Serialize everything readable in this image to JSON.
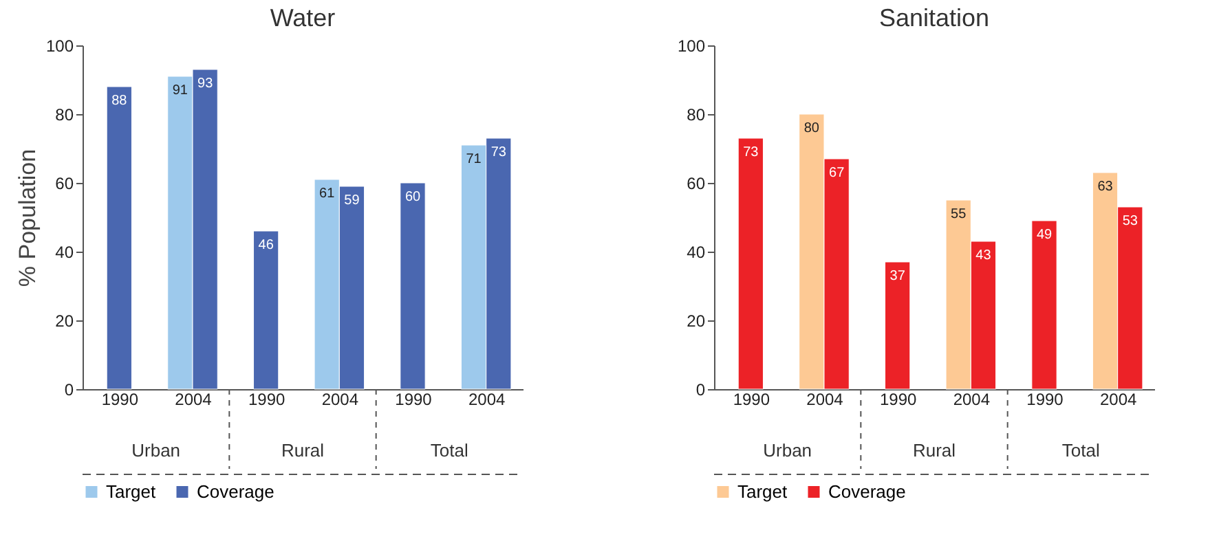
{
  "chart_data": [
    {
      "type": "bar",
      "title": "Water",
      "ylabel": "% Population",
      "categories": [
        "1990",
        "2004",
        "1990",
        "2004",
        "1990",
        "2004"
      ],
      "annotations": [
        "Urban",
        "Rural",
        "Total"
      ],
      "series": [
        {
          "name": "Target",
          "color": "#9dc9ec",
          "values": [
            null,
            91,
            null,
            61,
            null,
            71
          ]
        },
        {
          "name": "Coverage",
          "color": "#4a67b0",
          "values": [
            88,
            93,
            46,
            59,
            60,
            73
          ]
        }
      ],
      "ylim": [
        0,
        100
      ],
      "yticks": [
        0,
        20,
        40,
        60,
        80,
        100
      ],
      "grid": false,
      "legend": "bottom",
      "data_labels": true
    },
    {
      "type": "bar",
      "title": "Sanitation",
      "categories": [
        "1990",
        "2004",
        "1990",
        "2004",
        "1990",
        "2004"
      ],
      "annotations": [
        "Urban",
        "Rural",
        "Total"
      ],
      "series": [
        {
          "name": "Target",
          "color": "#fdc994",
          "values": [
            null,
            80,
            null,
            55,
            null,
            63
          ]
        },
        {
          "name": "Coverage",
          "color": "#ec2227",
          "values": [
            73,
            67,
            37,
            43,
            49,
            53
          ]
        }
      ],
      "ylim": [
        0,
        100
      ],
      "yticks": [
        0,
        20,
        40,
        60,
        80,
        100
      ],
      "grid": false,
      "legend": "bottom",
      "data_labels": true
    }
  ]
}
